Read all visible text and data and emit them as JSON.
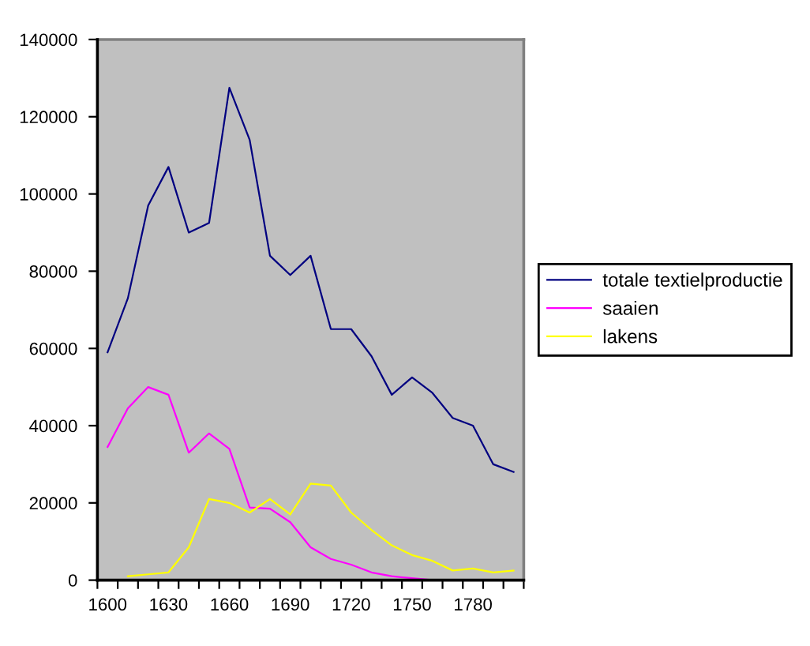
{
  "chart_data": {
    "type": "line",
    "categories": [
      "1600",
      null,
      null,
      "1630",
      null,
      null,
      "1660",
      null,
      null,
      "1690",
      null,
      null,
      "1720",
      null,
      null,
      "1750",
      null,
      null,
      "1780",
      null,
      null
    ],
    "series": [
      {
        "name": "totale textielproductie",
        "color": "#000080",
        "values": [
          59000,
          73000,
          97000,
          107000,
          90000,
          92500,
          127500,
          114000,
          84000,
          79000,
          84000,
          65000,
          65000,
          58000,
          48000,
          52500,
          48500,
          42000,
          40000,
          30000,
          28000
        ]
      },
      {
        "name": "saaien",
        "color": "#ff00ff",
        "values": [
          34500,
          44500,
          50000,
          48000,
          33000,
          38000,
          34000,
          18800,
          18500,
          15000,
          8500,
          5500,
          4000,
          2000,
          1000,
          500,
          0,
          null,
          null,
          null,
          null
        ]
      },
      {
        "name": "lakens",
        "color": "#ffff00",
        "values": [
          null,
          1000,
          1500,
          2000,
          8500,
          21000,
          20000,
          17500,
          21000,
          17000,
          25000,
          24500,
          17500,
          13000,
          9000,
          6500,
          5000,
          2500,
          3000,
          2000,
          2500
        ]
      }
    ],
    "ylim": [
      0,
      140000
    ],
    "yticks": [
      0,
      20000,
      40000,
      60000,
      80000,
      100000,
      120000,
      140000
    ],
    "legend": "right"
  }
}
